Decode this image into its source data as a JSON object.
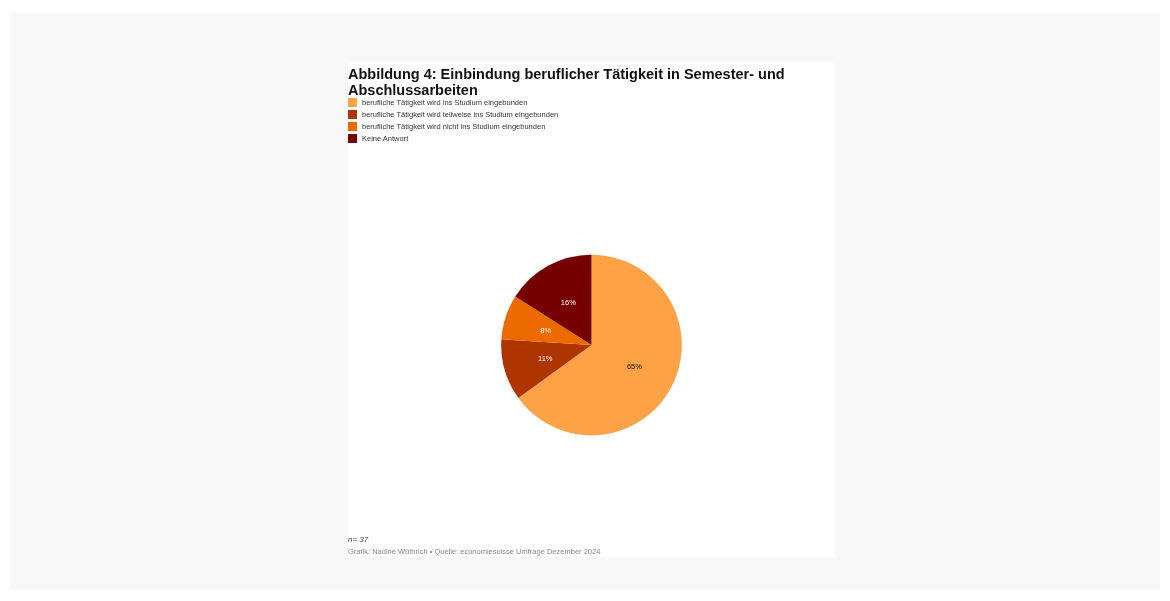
{
  "chart_data": {
    "type": "pie",
    "title": "Abbildung 4: Einbindung beruflicher Tätigkeit in Semester- und Abschlussarbeiten",
    "categories": [
      "berufliche Tätigkeit wird ins Studium eingebunden",
      "berufliche Tätigkeit wird teilweise ins Studium eingebunden",
      "berufliche Tätigkeit wird nicht ins Studium eingebunden",
      "Keine Antwort"
    ],
    "values": [
      65,
      11,
      8,
      16
    ],
    "colors": [
      "#ffa245",
      "#ae3400",
      "#ed6a00",
      "#760000"
    ],
    "value_labels": [
      "65%",
      "11%",
      "8%",
      "16%"
    ],
    "legend": "top left",
    "annotations": [
      "n= 37",
      "Grafik: Nadine Wüthrich • Quelle: economiesuisse Umfrage Dezember 2024"
    ]
  }
}
